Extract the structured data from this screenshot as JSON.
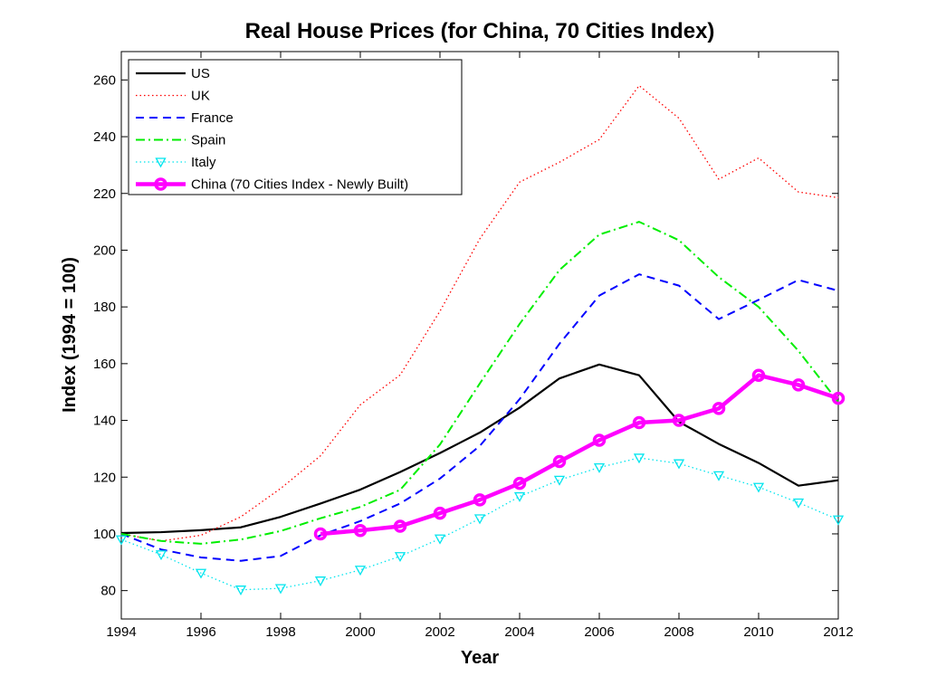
{
  "chart_data": {
    "type": "line",
    "title": "Real House Prices (for China, 70 Cities Index)",
    "xlabel": "Year",
    "ylabel": "Index (1994 = 100)",
    "xlim": [
      1994,
      2012
    ],
    "ylim": [
      70,
      270
    ],
    "xticks": [
      1994,
      1996,
      1998,
      2000,
      2002,
      2004,
      2006,
      2008,
      2010,
      2012
    ],
    "yticks": [
      80,
      100,
      120,
      140,
      160,
      180,
      200,
      220,
      240,
      260
    ],
    "x": [
      1994,
      1995,
      1996,
      1997,
      1998,
      1999,
      2000,
      2001,
      2002,
      2003,
      2004,
      2005,
      2006,
      2007,
      2008,
      2009,
      2010,
      2011,
      2012
    ],
    "legend_position": "top-left",
    "grid": false,
    "series": [
      {
        "name": "US",
        "color": "#000000",
        "style": "solid",
        "marker": "none",
        "values": [
          100.3,
          100.6,
          101.3,
          102.3,
          106.0,
          110.7,
          115.6,
          121.8,
          128.5,
          135.7,
          144.5,
          154.8,
          159.7,
          155.9,
          139.5,
          131.7,
          125.0,
          117.0,
          118.9
        ]
      },
      {
        "name": "UK",
        "color": "#ff0000",
        "style": "dotted",
        "marker": "none",
        "values": [
          100,
          97.5,
          99.5,
          106.0,
          116.0,
          127.5,
          145.5,
          156.0,
          178.5,
          204.0,
          224.0,
          231.0,
          239.0,
          258.0,
          246.5,
          225.0,
          232.5,
          220.5,
          218.5
        ]
      },
      {
        "name": "France",
        "color": "#0000ff",
        "style": "dashed",
        "marker": "none",
        "values": [
          100,
          94.5,
          91.7,
          90.5,
          92.2,
          99.5,
          104.5,
          110.7,
          119.5,
          131.0,
          147.5,
          167.0,
          184.0,
          191.5,
          187.5,
          175.7,
          182.5,
          189.5,
          185.7
        ]
      },
      {
        "name": "Spain",
        "color": "#00ee00",
        "style": "dashdot",
        "marker": "none",
        "values": [
          100,
          97.5,
          96.5,
          98.0,
          101.0,
          105.5,
          109.5,
          115.5,
          131.5,
          153.0,
          174.0,
          193.0,
          205.5,
          210.0,
          203.5,
          190.5,
          180.0,
          164.5,
          146.5
        ]
      },
      {
        "name": "Italy",
        "color": "#00e5ee",
        "style": "dotted",
        "marker": "triangle-down",
        "values": [
          98.0,
          92.7,
          86.2,
          80.3,
          80.8,
          83.5,
          87.3,
          92.1,
          98.3,
          105.4,
          113.2,
          119.0,
          123.4,
          126.8,
          124.8,
          120.6,
          116.5,
          111.0,
          105.0
        ]
      },
      {
        "name": "China (70 Cities Index - Newly Built)",
        "color": "#ff00ff",
        "style": "solid-thick",
        "marker": "circle",
        "values": [
          null,
          null,
          null,
          null,
          null,
          100.0,
          101.2,
          102.7,
          107.3,
          112.0,
          117.8,
          125.5,
          133.0,
          139.2,
          140.0,
          144.2,
          155.9,
          152.5,
          147.8
        ]
      }
    ]
  }
}
